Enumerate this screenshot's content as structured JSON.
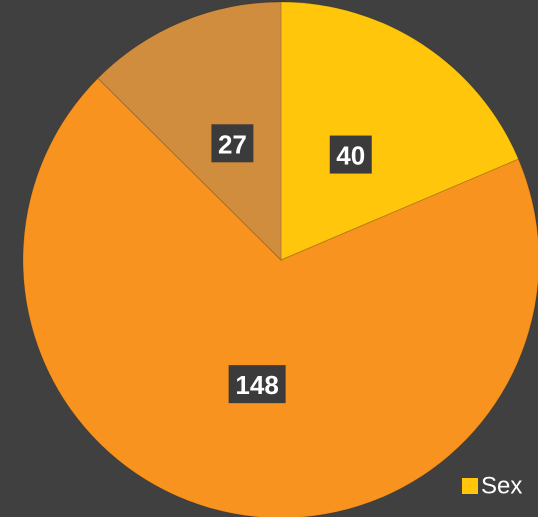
{
  "chart_data": {
    "type": "pie",
    "categories": [
      "Sex",
      null,
      null
    ],
    "values": [
      40,
      148,
      27
    ],
    "colors": [
      "#ffc60b",
      "#f7931e",
      "#d18d3e"
    ],
    "legend": "bottom-right"
  }
}
